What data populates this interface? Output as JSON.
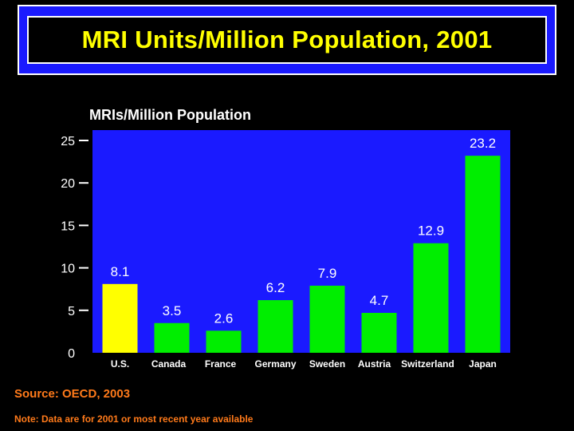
{
  "slide_title": "MRI Units/Million Population, 2001",
  "chart_data": {
    "type": "bar",
    "title": "MRIs/Million Population",
    "xlabel": "",
    "ylabel": "",
    "categories": [
      "U.S.",
      "Canada",
      "France",
      "Germany",
      "Sweden",
      "Austria",
      "Switzerland",
      "Japan"
    ],
    "values": [
      8.1,
      3.5,
      2.6,
      6.2,
      7.9,
      4.7,
      12.9,
      23.2
    ],
    "value_labels": [
      "8.1",
      "3.5",
      "2.6",
      "6.2",
      "7.9",
      "4.7",
      "12.9",
      "23.2"
    ],
    "bar_colors": [
      "#ffff00",
      "#00ee00",
      "#00ee00",
      "#00ee00",
      "#00ee00",
      "#00ee00",
      "#00ee00",
      "#00ee00"
    ],
    "ylim": [
      0,
      25
    ],
    "yticks": [
      0,
      5,
      10,
      15,
      20,
      25
    ],
    "ytick_labels": [
      "0",
      "5",
      "10",
      "15",
      "20",
      "25"
    ],
    "grid": false,
    "plot_background": "#1a1aff"
  },
  "source": "Source: OECD, 2003",
  "note": "Note: Data are for 2001 or most recent year available",
  "colors": {
    "background": "#000000",
    "banner_blue": "#1a1aff",
    "title_yellow": "#ffff00",
    "footnote_orange": "#ff7a1a"
  }
}
